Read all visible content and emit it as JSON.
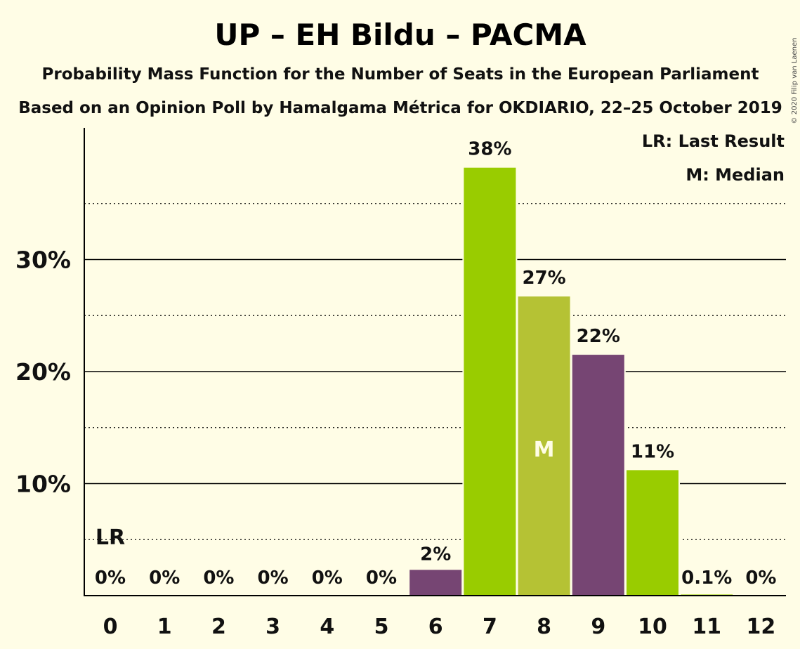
{
  "header": {
    "title": "UP – EH Bildu – PACMA",
    "subtitle1": "Probability Mass Function for the Number of Seats in the European Parliament",
    "subtitle2": "Based on an Opinion Poll by Hamalgama Métrica for OKDIARIO, 22–25 October 2019"
  },
  "copyright": "© 2020 Filip van Laenen",
  "legend": {
    "lr": "LR: Last Result",
    "m": "M: Median"
  },
  "markers": {
    "median_text": "M",
    "median_seat": 8,
    "last_result_text": "LR",
    "last_result_seat": 0
  },
  "colors": {
    "green": "#99CC00",
    "olive": "#B5C234",
    "purple": "#764573",
    "background": "#FFFDE6"
  },
  "chart_data": {
    "type": "bar",
    "categories": [
      "0",
      "1",
      "2",
      "3",
      "4",
      "5",
      "6",
      "7",
      "8",
      "9",
      "10",
      "11",
      "12"
    ],
    "values": [
      0,
      0,
      0,
      0,
      0,
      0,
      2.3,
      38.2,
      26.7,
      21.5,
      11.2,
      0.1,
      0
    ],
    "labels": [
      "0%",
      "0%",
      "0%",
      "0%",
      "0%",
      "0%",
      "2%",
      "38%",
      "27%",
      "22%",
      "11%",
      "0.1%",
      "0%"
    ],
    "bar_colors": [
      "#99CC00",
      "#99CC00",
      "#99CC00",
      "#99CC00",
      "#99CC00",
      "#99CC00",
      "#764573",
      "#99CC00",
      "#B5C234",
      "#764573",
      "#99CC00",
      "#99CC00",
      "#99CC00"
    ],
    "ylim": [
      0,
      40
    ],
    "major_ticks": [
      10,
      20,
      30
    ],
    "major_tick_labels": [
      "10%",
      "20%",
      "30%"
    ],
    "minor_ticks": [
      5,
      15,
      25,
      35
    ],
    "legend_position": "top-right"
  }
}
